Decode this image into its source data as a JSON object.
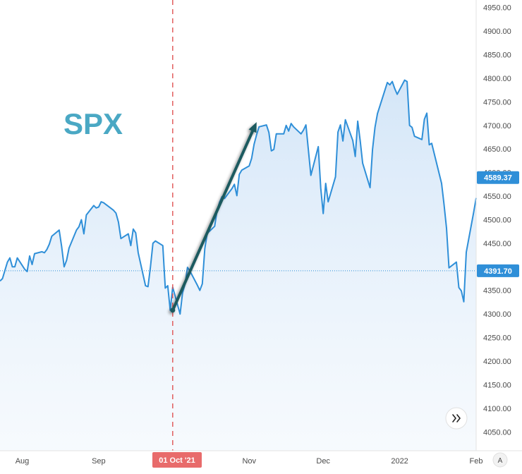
{
  "chart_data": {
    "type": "area",
    "title": "SPX",
    "ticker": "SPX",
    "colors": {
      "line": "#2f8fd8",
      "title": "#4aa8c4",
      "arrow": "#1f5a5e",
      "price_tag": "#2f8fd8",
      "date_tag": "#e86b6b",
      "crosshair": "#e05252"
    },
    "y_axis": {
      "side": "right",
      "ticks": [
        "4050.00",
        "4100.00",
        "4150.00",
        "4200.00",
        "4250.00",
        "4300.00",
        "4350.00",
        "4400.00",
        "4450.00",
        "4500.00",
        "4550.00",
        "4600.00",
        "4650.00",
        "4700.00",
        "4750.00",
        "4800.00",
        "4850.00",
        "4900.00",
        "4950.00"
      ],
      "range": [
        4010,
        4966
      ]
    },
    "x_axis": {
      "labels": [
        "Aug",
        "Sep",
        "Nov",
        "Dec",
        "2022",
        "Feb"
      ],
      "label_dates": [
        "2021-08-01",
        "2021-09-01",
        "2021-11-01",
        "2021-12-01",
        "2022-01-01",
        "2022-02-01"
      ],
      "range": [
        "2021-07-23",
        "2022-02-01"
      ]
    },
    "crosshair_label": "01 Oct '21",
    "crosshair_date": "2021-10-01",
    "price_labels": [
      {
        "value": "4589.37",
        "price": 4589.37
      },
      {
        "value": "4391.70",
        "price": 4391.7
      }
    ],
    "reference_line_price": 4391.7,
    "arrow": {
      "from": {
        "date": "2021-10-01",
        "price": 4308
      },
      "to": {
        "date": "2021-11-04",
        "price": 4707
      }
    },
    "scale_mode_label": "A",
    "scroll_button": "double-chevron-right-icon",
    "series": [
      {
        "values": [
          [
            "2021-07-23",
            4370
          ],
          [
            "2021-07-24",
            4375
          ],
          [
            "2021-07-26",
            4410
          ],
          [
            "2021-07-27",
            4419
          ],
          [
            "2021-07-28",
            4400
          ],
          [
            "2021-07-29",
            4400
          ],
          [
            "2021-07-30",
            4419
          ],
          [
            "2021-08-02",
            4395
          ],
          [
            "2021-08-03",
            4390
          ],
          [
            "2021-08-04",
            4423
          ],
          [
            "2021-08-05",
            4405
          ],
          [
            "2021-08-06",
            4428
          ],
          [
            "2021-08-09",
            4432
          ],
          [
            "2021-08-10",
            4430
          ],
          [
            "2021-08-11",
            4437
          ],
          [
            "2021-08-12",
            4448
          ],
          [
            "2021-08-13",
            4465
          ],
          [
            "2021-08-16",
            4478
          ],
          [
            "2021-08-17",
            4443
          ],
          [
            "2021-08-18",
            4400
          ],
          [
            "2021-08-19",
            4414
          ],
          [
            "2021-08-20",
            4440
          ],
          [
            "2021-08-23",
            4478
          ],
          [
            "2021-08-24",
            4485
          ],
          [
            "2021-08-25",
            4500
          ],
          [
            "2021-08-26",
            4470
          ],
          [
            "2021-08-27",
            4510
          ],
          [
            "2021-08-30",
            4530
          ],
          [
            "2021-08-31",
            4525
          ],
          [
            "2021-09-01",
            4527
          ],
          [
            "2021-09-02",
            4538
          ],
          [
            "2021-09-03",
            4536
          ],
          [
            "2021-09-07",
            4520
          ],
          [
            "2021-09-08",
            4514
          ],
          [
            "2021-09-09",
            4495
          ],
          [
            "2021-09-10",
            4460
          ],
          [
            "2021-09-13",
            4470
          ],
          [
            "2021-09-14",
            4445
          ],
          [
            "2021-09-15",
            4480
          ],
          [
            "2021-09-16",
            4472
          ],
          [
            "2021-09-17",
            4430
          ],
          [
            "2021-09-20",
            4360
          ],
          [
            "2021-09-21",
            4358
          ],
          [
            "2021-09-22",
            4400
          ],
          [
            "2021-09-23",
            4450
          ],
          [
            "2021-09-24",
            4455
          ],
          [
            "2021-09-27",
            4445
          ],
          [
            "2021-09-28",
            4355
          ],
          [
            "2021-09-29",
            4360
          ],
          [
            "2021-09-30",
            4308
          ],
          [
            "2021-10-01",
            4357
          ],
          [
            "2021-10-04",
            4300
          ],
          [
            "2021-10-05",
            4345
          ],
          [
            "2021-10-06",
            4363
          ],
          [
            "2021-10-07",
            4399
          ],
          [
            "2021-10-08",
            4391
          ],
          [
            "2021-10-11",
            4361
          ],
          [
            "2021-10-12",
            4350
          ],
          [
            "2021-10-13",
            4364
          ],
          [
            "2021-10-14",
            4438
          ],
          [
            "2021-10-15",
            4471
          ],
          [
            "2021-10-18",
            4486
          ],
          [
            "2021-10-19",
            4520
          ],
          [
            "2021-10-20",
            4537
          ],
          [
            "2021-10-21",
            4549
          ],
          [
            "2021-10-22",
            4545
          ],
          [
            "2021-10-25",
            4566
          ],
          [
            "2021-10-26",
            4575
          ],
          [
            "2021-10-27",
            4551
          ],
          [
            "2021-10-28",
            4596
          ],
          [
            "2021-10-29",
            4605
          ],
          [
            "2021-11-01",
            4614
          ],
          [
            "2021-11-02",
            4630
          ],
          [
            "2021-11-03",
            4660
          ],
          [
            "2021-11-04",
            4680
          ],
          [
            "2021-11-05",
            4697
          ],
          [
            "2021-11-08",
            4701
          ],
          [
            "2021-11-09",
            4685
          ],
          [
            "2021-11-10",
            4646
          ],
          [
            "2021-11-11",
            4649
          ],
          [
            "2021-11-12",
            4682
          ],
          [
            "2021-11-15",
            4682
          ],
          [
            "2021-11-16",
            4700
          ],
          [
            "2021-11-17",
            4688
          ],
          [
            "2021-11-18",
            4704
          ],
          [
            "2021-11-19",
            4697
          ],
          [
            "2021-11-22",
            4682
          ],
          [
            "2021-11-23",
            4690
          ],
          [
            "2021-11-24",
            4701
          ],
          [
            "2021-11-26",
            4594
          ],
          [
            "2021-11-29",
            4655
          ],
          [
            "2021-11-30",
            4567
          ],
          [
            "2021-12-01",
            4513
          ],
          [
            "2021-12-02",
            4577
          ],
          [
            "2021-12-03",
            4538
          ],
          [
            "2021-12-06",
            4591
          ],
          [
            "2021-12-07",
            4686
          ],
          [
            "2021-12-08",
            4701
          ],
          [
            "2021-12-09",
            4667
          ],
          [
            "2021-12-10",
            4712
          ],
          [
            "2021-12-13",
            4668
          ],
          [
            "2021-12-14",
            4634
          ],
          [
            "2021-12-15",
            4709
          ],
          [
            "2021-12-16",
            4668
          ],
          [
            "2021-12-17",
            4620
          ],
          [
            "2021-12-20",
            4568
          ],
          [
            "2021-12-21",
            4649
          ],
          [
            "2021-12-22",
            4696
          ],
          [
            "2021-12-23",
            4725
          ],
          [
            "2021-12-27",
            4791
          ],
          [
            "2021-12-28",
            4786
          ],
          [
            "2021-12-29",
            4793
          ],
          [
            "2021-12-30",
            4778
          ],
          [
            "2021-12-31",
            4766
          ],
          [
            "2022-01-03",
            4796
          ],
          [
            "2022-01-04",
            4793
          ],
          [
            "2022-01-05",
            4700
          ],
          [
            "2022-01-06",
            4696
          ],
          [
            "2022-01-07",
            4677
          ],
          [
            "2022-01-10",
            4670
          ],
          [
            "2022-01-11",
            4713
          ],
          [
            "2022-01-12",
            4726
          ],
          [
            "2022-01-13",
            4659
          ],
          [
            "2022-01-14",
            4662
          ],
          [
            "2022-01-18",
            4577
          ],
          [
            "2022-01-19",
            4532
          ],
          [
            "2022-01-20",
            4482
          ],
          [
            "2022-01-21",
            4398
          ],
          [
            "2022-01-24",
            4410
          ],
          [
            "2022-01-25",
            4356
          ],
          [
            "2022-01-26",
            4349
          ],
          [
            "2022-01-27",
            4326
          ],
          [
            "2022-01-28",
            4431
          ],
          [
            "2022-01-31",
            4516
          ],
          [
            "2022-02-01",
            4546
          ]
        ]
      }
    ]
  }
}
